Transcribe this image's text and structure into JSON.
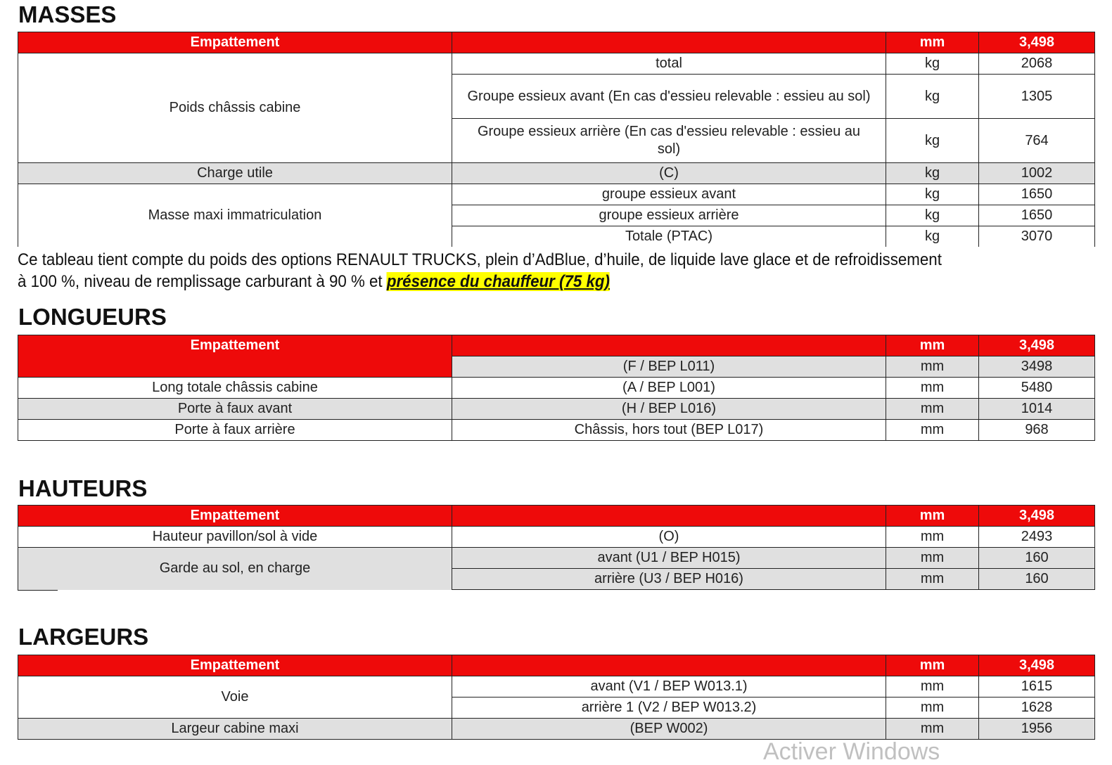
{
  "header": {
    "label": "Empattement",
    "unit": "mm",
    "value": "3,498"
  },
  "masses": {
    "title": "MASSES",
    "rows": [
      {
        "group": "Poids châssis cabine",
        "desc": "total",
        "unit": "kg",
        "value": "2068"
      },
      {
        "desc": "Groupe essieux avant (En cas d'essieu relevable : essieu au sol)",
        "unit": "kg",
        "value": "1305"
      },
      {
        "desc": "Groupe essieux arrière (En cas d'essieu relevable : essieu au sol)",
        "unit": "kg",
        "value": "764"
      },
      {
        "group": "Charge utile",
        "desc": "(C)",
        "unit": "kg",
        "value": "1002"
      },
      {
        "group": "Masse maxi immatriculation",
        "desc": "groupe essieux avant",
        "unit": "kg",
        "value": "1650"
      },
      {
        "desc": "groupe essieux arrière",
        "unit": "kg",
        "value": "1650"
      },
      {
        "desc": "Totale (PTAC)",
        "unit": "kg",
        "value": "3070"
      }
    ]
  },
  "note": {
    "line1": "Ce tableau tient compte du poids des options RENAULT TRUCKS, plein d’AdBlue, d’huile, de liquide lave glace et de refroidissement",
    "line2": "à 100 %, niveau de remplissage carburant à 90 % et ",
    "highlight": "présence du chauffeur (75 kg)"
  },
  "longueurs": {
    "title": "LONGUEURS",
    "rows": [
      {
        "desc": "(F / BEP L011)",
        "unit": "mm",
        "value": "3498"
      },
      {
        "group": "Long totale châssis cabine",
        "desc": "(A / BEP L001)",
        "unit": "mm",
        "value": "5480"
      },
      {
        "group": "Porte à faux avant",
        "desc": "(H / BEP L016)",
        "unit": "mm",
        "value": "1014"
      },
      {
        "group": "Porte à faux arrière",
        "desc": "Châssis, hors tout (BEP L017)",
        "unit": "mm",
        "value": "968"
      }
    ]
  },
  "hauteurs": {
    "title": "HAUTEURS",
    "rows": [
      {
        "group": "Hauteur pavillon/sol à vide",
        "desc": "(O)",
        "unit": "mm",
        "value": "2493"
      },
      {
        "group": "Garde au sol, en charge",
        "desc": "avant (U1 / BEP H015)",
        "unit": "mm",
        "value": "160"
      },
      {
        "desc": "arrière (U3 / BEP H016)",
        "unit": "mm",
        "value": "160"
      }
    ]
  },
  "largeurs": {
    "title": "LARGEURS",
    "rows": [
      {
        "group": "Voie",
        "desc": "avant (V1 / BEP W013.1)",
        "unit": "mm",
        "value": "1615"
      },
      {
        "desc": "arrière 1 (V2 / BEP W013.2)",
        "unit": "mm",
        "value": "1628"
      },
      {
        "group": "Largeur cabine maxi",
        "desc": "(BEP W002)",
        "unit": "mm",
        "value": "1956"
      }
    ]
  },
  "watermark": "Activer Windows",
  "colors": {
    "header_red": "#ee0a0a",
    "row_gray": "#e0e0e0",
    "highlight": "#ffff00"
  }
}
